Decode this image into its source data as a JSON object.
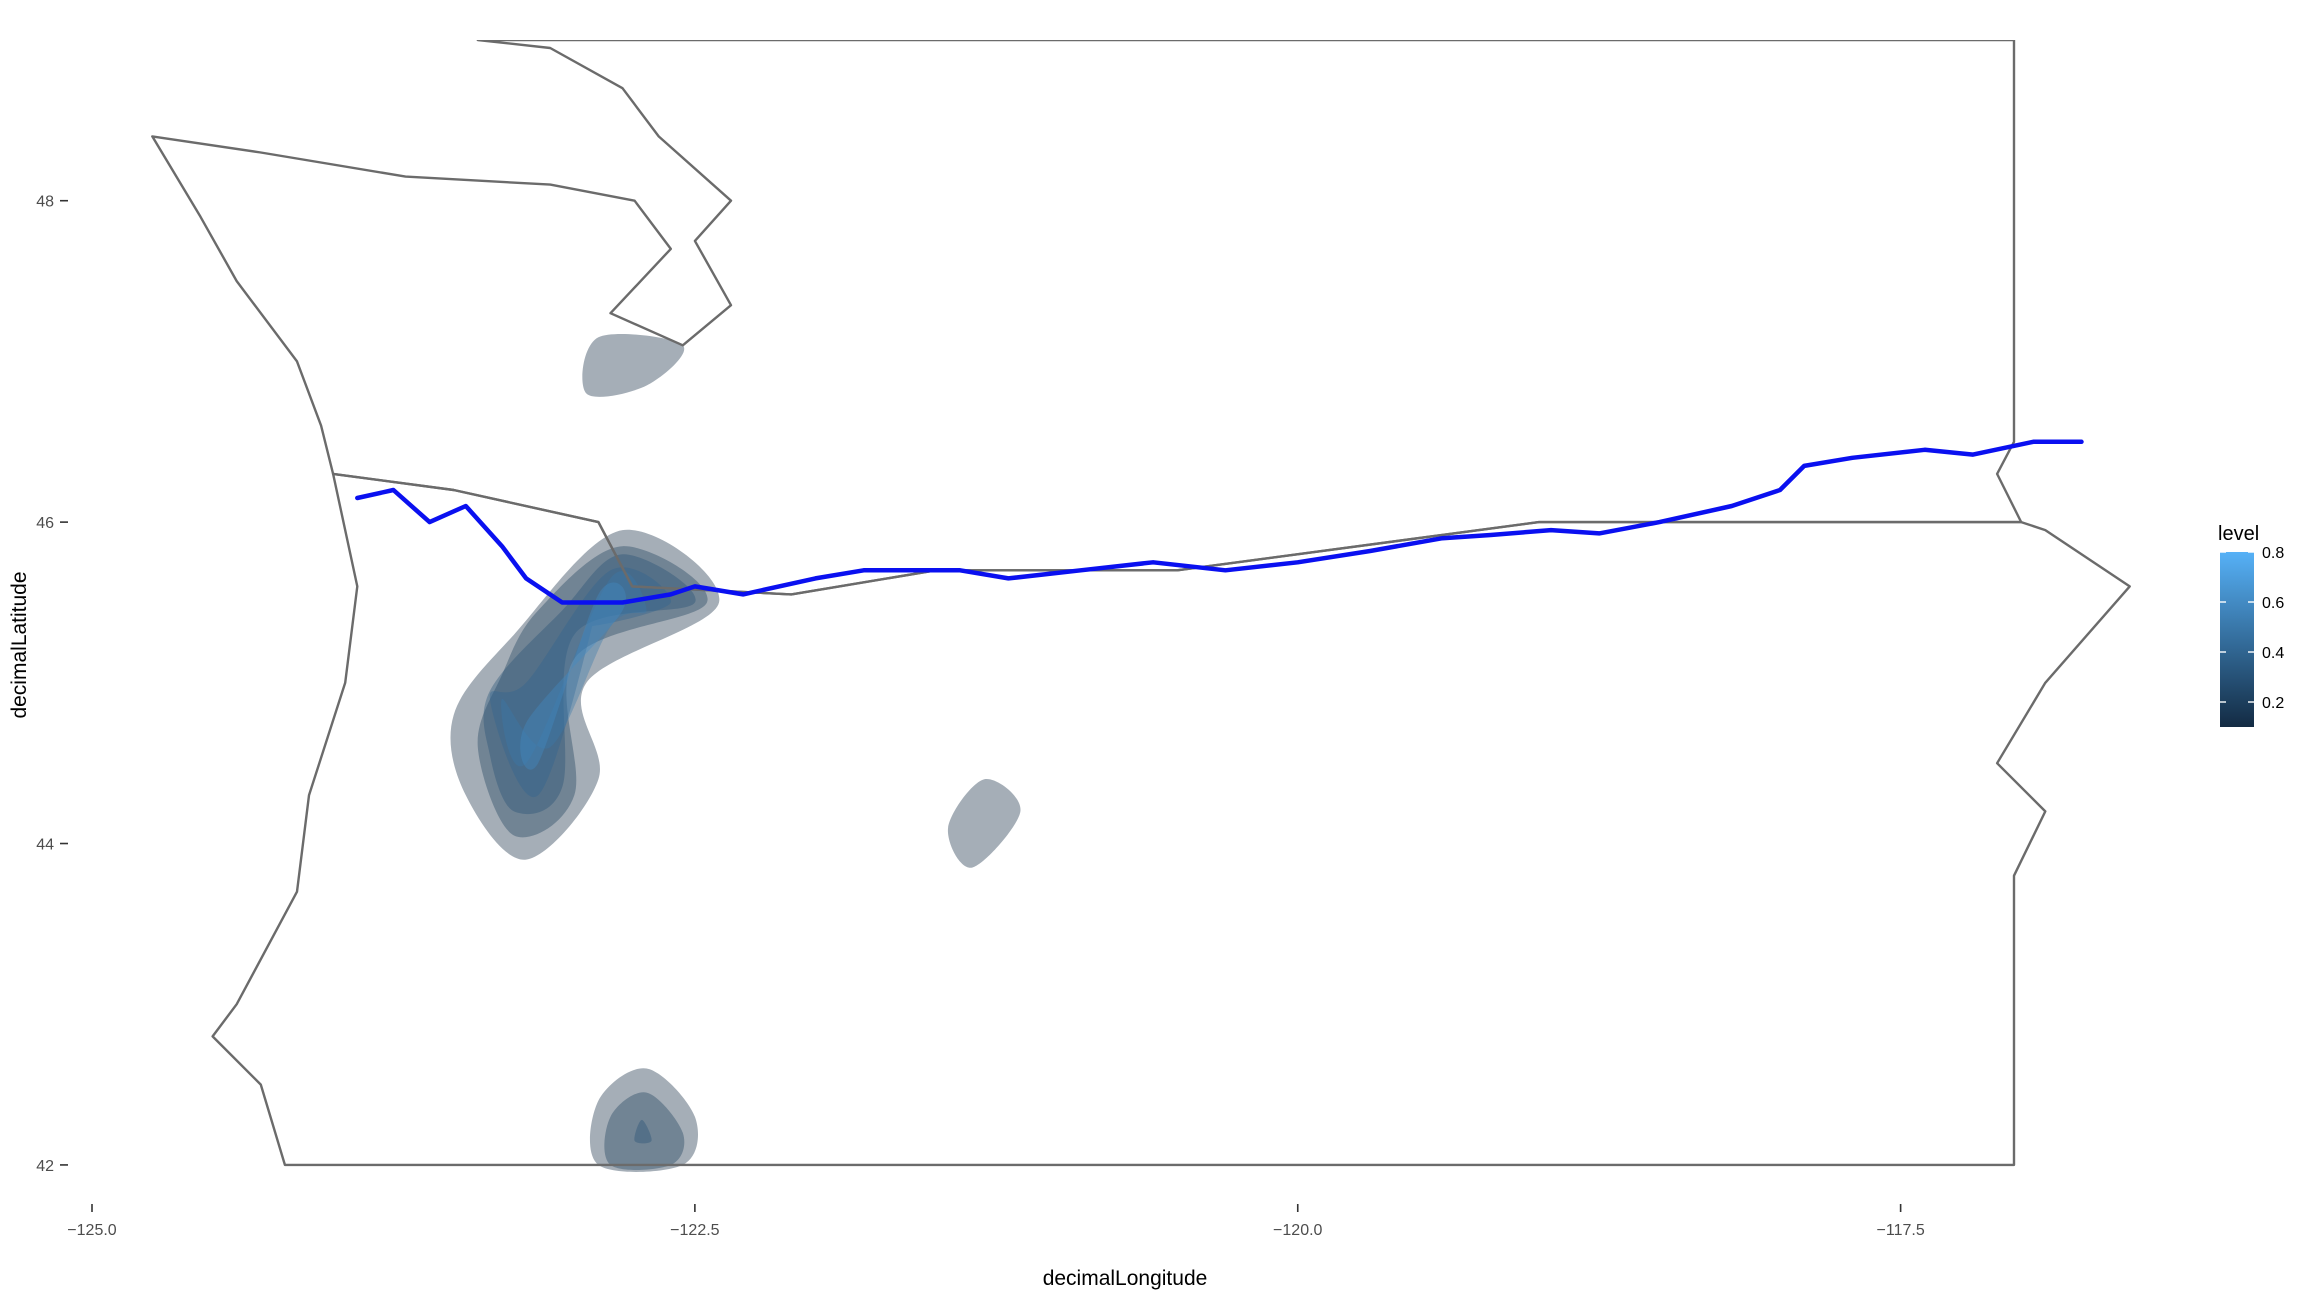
{
  "chart_data": {
    "type": "density-contour-map",
    "title": "",
    "xlabel": "decimalLongitude",
    "ylabel": "decimalLatitude",
    "xlim": [
      -125.0,
      -116.3
    ],
    "ylim": [
      41.9,
      49.0
    ],
    "x_ticks": [
      -125.0,
      -122.5,
      -120.0,
      -117.5
    ],
    "x_tick_labels": [
      "−125.0",
      "−122.5",
      "−120.0",
      "−117.5"
    ],
    "y_ticks": [
      42,
      44,
      46,
      48
    ],
    "y_tick_labels": [
      "42",
      "44",
      "46",
      "48"
    ],
    "grid": false,
    "legend": {
      "title": "level",
      "position": "right",
      "range": [
        0.1,
        0.8
      ],
      "ticks": [
        0.2,
        0.4,
        0.6,
        0.8
      ],
      "tick_labels": [
        "0.2",
        "0.4",
        "0.6",
        "0.8"
      ],
      "color_low": "#132b43",
      "color_high": "#56b1f7"
    },
    "colors": {
      "state_outline": "#6b6b6b",
      "river": "#0a10f0"
    },
    "state_outlines": [
      {
        "name": "Washington",
        "points": [
          [
            -123.4,
            49.0
          ],
          [
            -117.03,
            49.0
          ],
          [
            -117.03,
            46.5
          ],
          [
            -117.1,
            46.3
          ],
          [
            -117.0,
            46.0
          ],
          [
            -119.0,
            46.0
          ],
          [
            -120.5,
            45.7
          ],
          [
            -121.5,
            45.7
          ],
          [
            -122.1,
            45.55
          ],
          [
            -122.76,
            45.6
          ],
          [
            -122.9,
            46.0
          ],
          [
            -123.5,
            46.2
          ],
          [
            -124.0,
            46.3
          ],
          [
            -124.05,
            46.6
          ],
          [
            -124.15,
            47.0
          ],
          [
            -124.4,
            47.5
          ],
          [
            -124.55,
            47.9
          ],
          [
            -124.75,
            48.4
          ],
          [
            -124.3,
            48.3
          ],
          [
            -123.7,
            48.15
          ],
          [
            -123.1,
            48.1
          ],
          [
            -122.75,
            48.0
          ],
          [
            -122.6,
            47.7
          ],
          [
            -122.85,
            47.3
          ],
          [
            -122.55,
            47.1
          ],
          [
            -122.35,
            47.35
          ],
          [
            -122.5,
            47.75
          ],
          [
            -122.35,
            48.0
          ],
          [
            -122.65,
            48.4
          ],
          [
            -122.8,
            48.7
          ],
          [
            -123.1,
            48.95
          ],
          [
            -123.4,
            49.0
          ]
        ]
      },
      {
        "name": "Oregon",
        "points": [
          [
            -124.2,
            42.0
          ],
          [
            -117.03,
            42.0
          ],
          [
            -117.03,
            43.8
          ],
          [
            -116.9,
            44.2
          ],
          [
            -117.1,
            44.5
          ],
          [
            -116.9,
            45.0
          ],
          [
            -116.55,
            45.6
          ],
          [
            -116.9,
            45.95
          ],
          [
            -117.0,
            46.0
          ],
          [
            -119.0,
            46.0
          ],
          [
            -120.5,
            45.7
          ],
          [
            -121.5,
            45.7
          ],
          [
            -122.1,
            45.55
          ],
          [
            -122.76,
            45.6
          ],
          [
            -122.9,
            46.0
          ],
          [
            -123.5,
            46.2
          ],
          [
            -124.0,
            46.3
          ],
          [
            -123.9,
            45.6
          ],
          [
            -123.95,
            45.0
          ],
          [
            -124.1,
            44.3
          ],
          [
            -124.15,
            43.7
          ],
          [
            -124.4,
            43.0
          ],
          [
            -124.5,
            42.8
          ],
          [
            -124.3,
            42.5
          ],
          [
            -124.2,
            42.0
          ]
        ]
      }
    ],
    "river": {
      "name": "Columbia River",
      "points": [
        [
          -123.9,
          46.15
        ],
        [
          -123.75,
          46.2
        ],
        [
          -123.6,
          46.0
        ],
        [
          -123.45,
          46.1
        ],
        [
          -123.3,
          45.85
        ],
        [
          -123.2,
          45.65
        ],
        [
          -123.05,
          45.5
        ],
        [
          -122.8,
          45.5
        ],
        [
          -122.6,
          45.55
        ],
        [
          -122.5,
          45.6
        ],
        [
          -122.3,
          45.55
        ],
        [
          -122.0,
          45.65
        ],
        [
          -121.8,
          45.7
        ],
        [
          -121.4,
          45.7
        ],
        [
          -121.2,
          45.65
        ],
        [
          -120.9,
          45.7
        ],
        [
          -120.6,
          45.75
        ],
        [
          -120.3,
          45.7
        ],
        [
          -120.0,
          45.75
        ],
        [
          -119.7,
          45.82
        ],
        [
          -119.4,
          45.9
        ],
        [
          -119.2,
          45.92
        ],
        [
          -118.95,
          45.95
        ],
        [
          -118.75,
          45.93
        ],
        [
          -118.5,
          46.0
        ],
        [
          -118.2,
          46.1
        ],
        [
          -118.0,
          46.2
        ],
        [
          -117.9,
          46.35
        ],
        [
          -117.7,
          46.4
        ],
        [
          -117.4,
          46.45
        ],
        [
          -117.2,
          46.42
        ],
        [
          -116.95,
          46.5
        ],
        [
          -116.75,
          46.5
        ]
      ]
    },
    "density_contours": [
      {
        "cluster": "puget-sound",
        "levels": [
          {
            "level": 0.1,
            "ring": [
              [
                -122.9,
                47.15
              ],
              [
                -122.55,
                47.1
              ],
              [
                -122.7,
                46.85
              ],
              [
                -122.95,
                46.8
              ]
            ]
          }
        ]
      },
      {
        "cluster": "willamette-valley",
        "levels": [
          {
            "level": 0.1,
            "ring": [
              [
                -122.8,
                45.95
              ],
              [
                -122.4,
                45.5
              ],
              [
                -122.95,
                45.0
              ],
              [
                -122.9,
                44.4
              ],
              [
                -123.2,
                43.9
              ],
              [
                -123.45,
                44.3
              ],
              [
                -123.5,
                44.8
              ],
              [
                -123.25,
                45.3
              ]
            ]
          },
          {
            "level": 0.2,
            "ring": [
              [
                -122.8,
                45.85
              ],
              [
                -122.45,
                45.5
              ],
              [
                -123.0,
                45.15
              ],
              [
                -123.0,
                44.3
              ],
              [
                -123.25,
                44.05
              ],
              [
                -123.4,
                44.6
              ],
              [
                -123.3,
                45.05
              ],
              [
                -123.15,
                45.45
              ]
            ]
          },
          {
            "level": 0.3,
            "ring": [
              [
                -122.8,
                45.8
              ],
              [
                -122.5,
                45.5
              ],
              [
                -123.0,
                45.3
              ],
              [
                -123.05,
                44.35
              ],
              [
                -123.25,
                44.2
              ],
              [
                -123.35,
                44.55
              ],
              [
                -123.35,
                44.95
              ],
              [
                -123.05,
                45.45
              ]
            ]
          },
          {
            "level": 0.4,
            "ring": [
              [
                -122.85,
                45.7
              ],
              [
                -122.6,
                45.5
              ],
              [
                -122.95,
                45.35
              ],
              [
                -122.9,
                45.5
              ],
              [
                -123.15,
                44.3
              ],
              [
                -123.35,
                44.9
              ],
              [
                -123.2,
                45.0
              ]
            ]
          },
          {
            "level": 0.5,
            "ring": [
              [
                -122.85,
                45.65
              ],
              [
                -122.7,
                45.45
              ],
              [
                -122.85,
                45.35
              ],
              [
                -123.1,
                44.6
              ],
              [
                -123.3,
                44.9
              ],
              [
                -123.2,
                44.5
              ]
            ]
          },
          {
            "level": 0.6,
            "ring": [
              [
                -122.9,
                45.55
              ],
              [
                -122.8,
                45.45
              ],
              [
                -123.2,
                44.75
              ],
              [
                -123.15,
                44.5
              ]
            ]
          },
          {
            "level": 0.7,
            "ring": [
              [
                -123.25,
                44.8
              ],
              [
                -123.2,
                44.55
              ]
            ]
          }
        ]
      },
      {
        "cluster": "central-oregon",
        "levels": [
          {
            "level": 0.1,
            "ring": [
              [
                -121.3,
                44.4
              ],
              [
                -121.15,
                44.2
              ],
              [
                -121.35,
                43.85
              ],
              [
                -121.45,
                44.1
              ]
            ]
          }
        ]
      },
      {
        "cluster": "southern-oregon",
        "levels": [
          {
            "level": 0.1,
            "ring": [
              [
                -122.7,
                42.6
              ],
              [
                -122.5,
                42.3
              ],
              [
                -122.55,
                42.0
              ],
              [
                -122.9,
                42.0
              ],
              [
                -122.9,
                42.4
              ]
            ]
          },
          {
            "level": 0.2,
            "ring": [
              [
                -122.7,
                42.45
              ],
              [
                -122.55,
                42.2
              ],
              [
                -122.6,
                42.0
              ],
              [
                -122.85,
                42.0
              ],
              [
                -122.85,
                42.3
              ]
            ]
          },
          {
            "level": 0.3,
            "ring": [
              [
                -122.72,
                42.28
              ],
              [
                -122.68,
                42.15
              ],
              [
                -122.75,
                42.15
              ]
            ]
          }
        ]
      }
    ]
  }
}
